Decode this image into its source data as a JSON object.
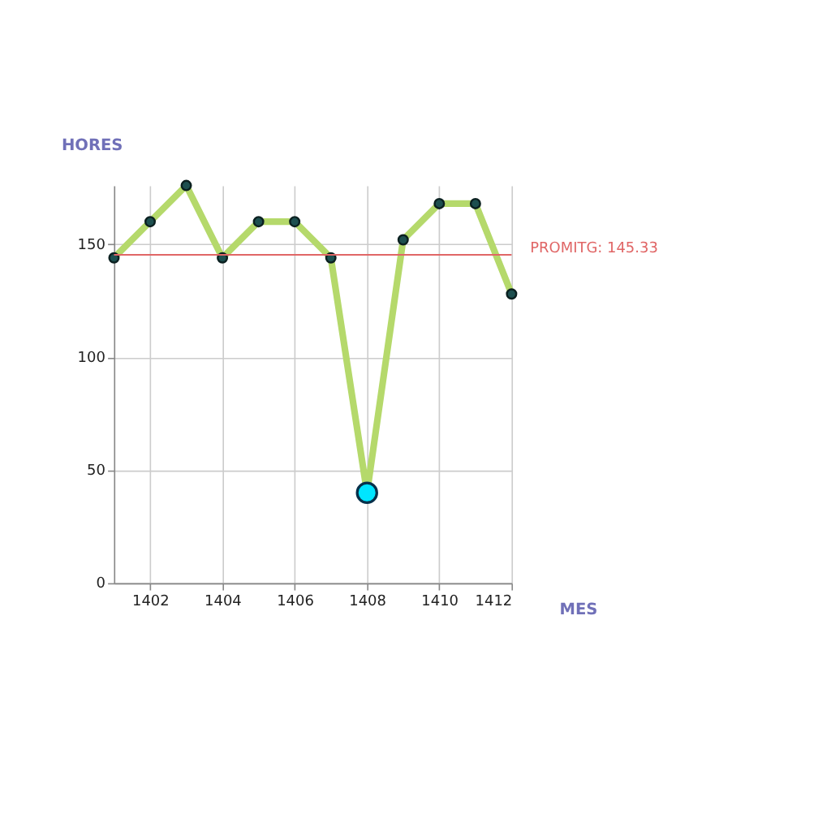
{
  "chart_data": {
    "type": "line",
    "xlabel": "MES",
    "ylabel": "HORES",
    "x": [
      1401,
      1402,
      1403,
      1404,
      1405,
      1406,
      1407,
      1408,
      1409,
      1410,
      1411,
      1412
    ],
    "series": [
      {
        "color": "#b5d96b",
        "values": [
          144,
          160,
          176,
          144,
          160,
          160,
          144,
          40,
          152,
          168,
          168,
          128
        ]
      },
      {
        "type": "scatter",
        "color": "#00e5ff",
        "x": [
          1408
        ],
        "values": [
          40
        ]
      }
    ],
    "marker": "circle",
    "line_style": "solid",
    "xlim": [
      1401,
      1412
    ],
    "xticks": [
      1402,
      1404,
      1406,
      1408,
      1410,
      1412
    ],
    "ylim": [
      0,
      176
    ],
    "yticks": [
      0,
      50,
      100,
      150
    ],
    "grid": true,
    "ref_lines": [
      {
        "axis": "y",
        "value": 145.33,
        "label": "PROMITG: 145.33",
        "color": "#e06666",
        "line_style": "solid"
      }
    ]
  }
}
